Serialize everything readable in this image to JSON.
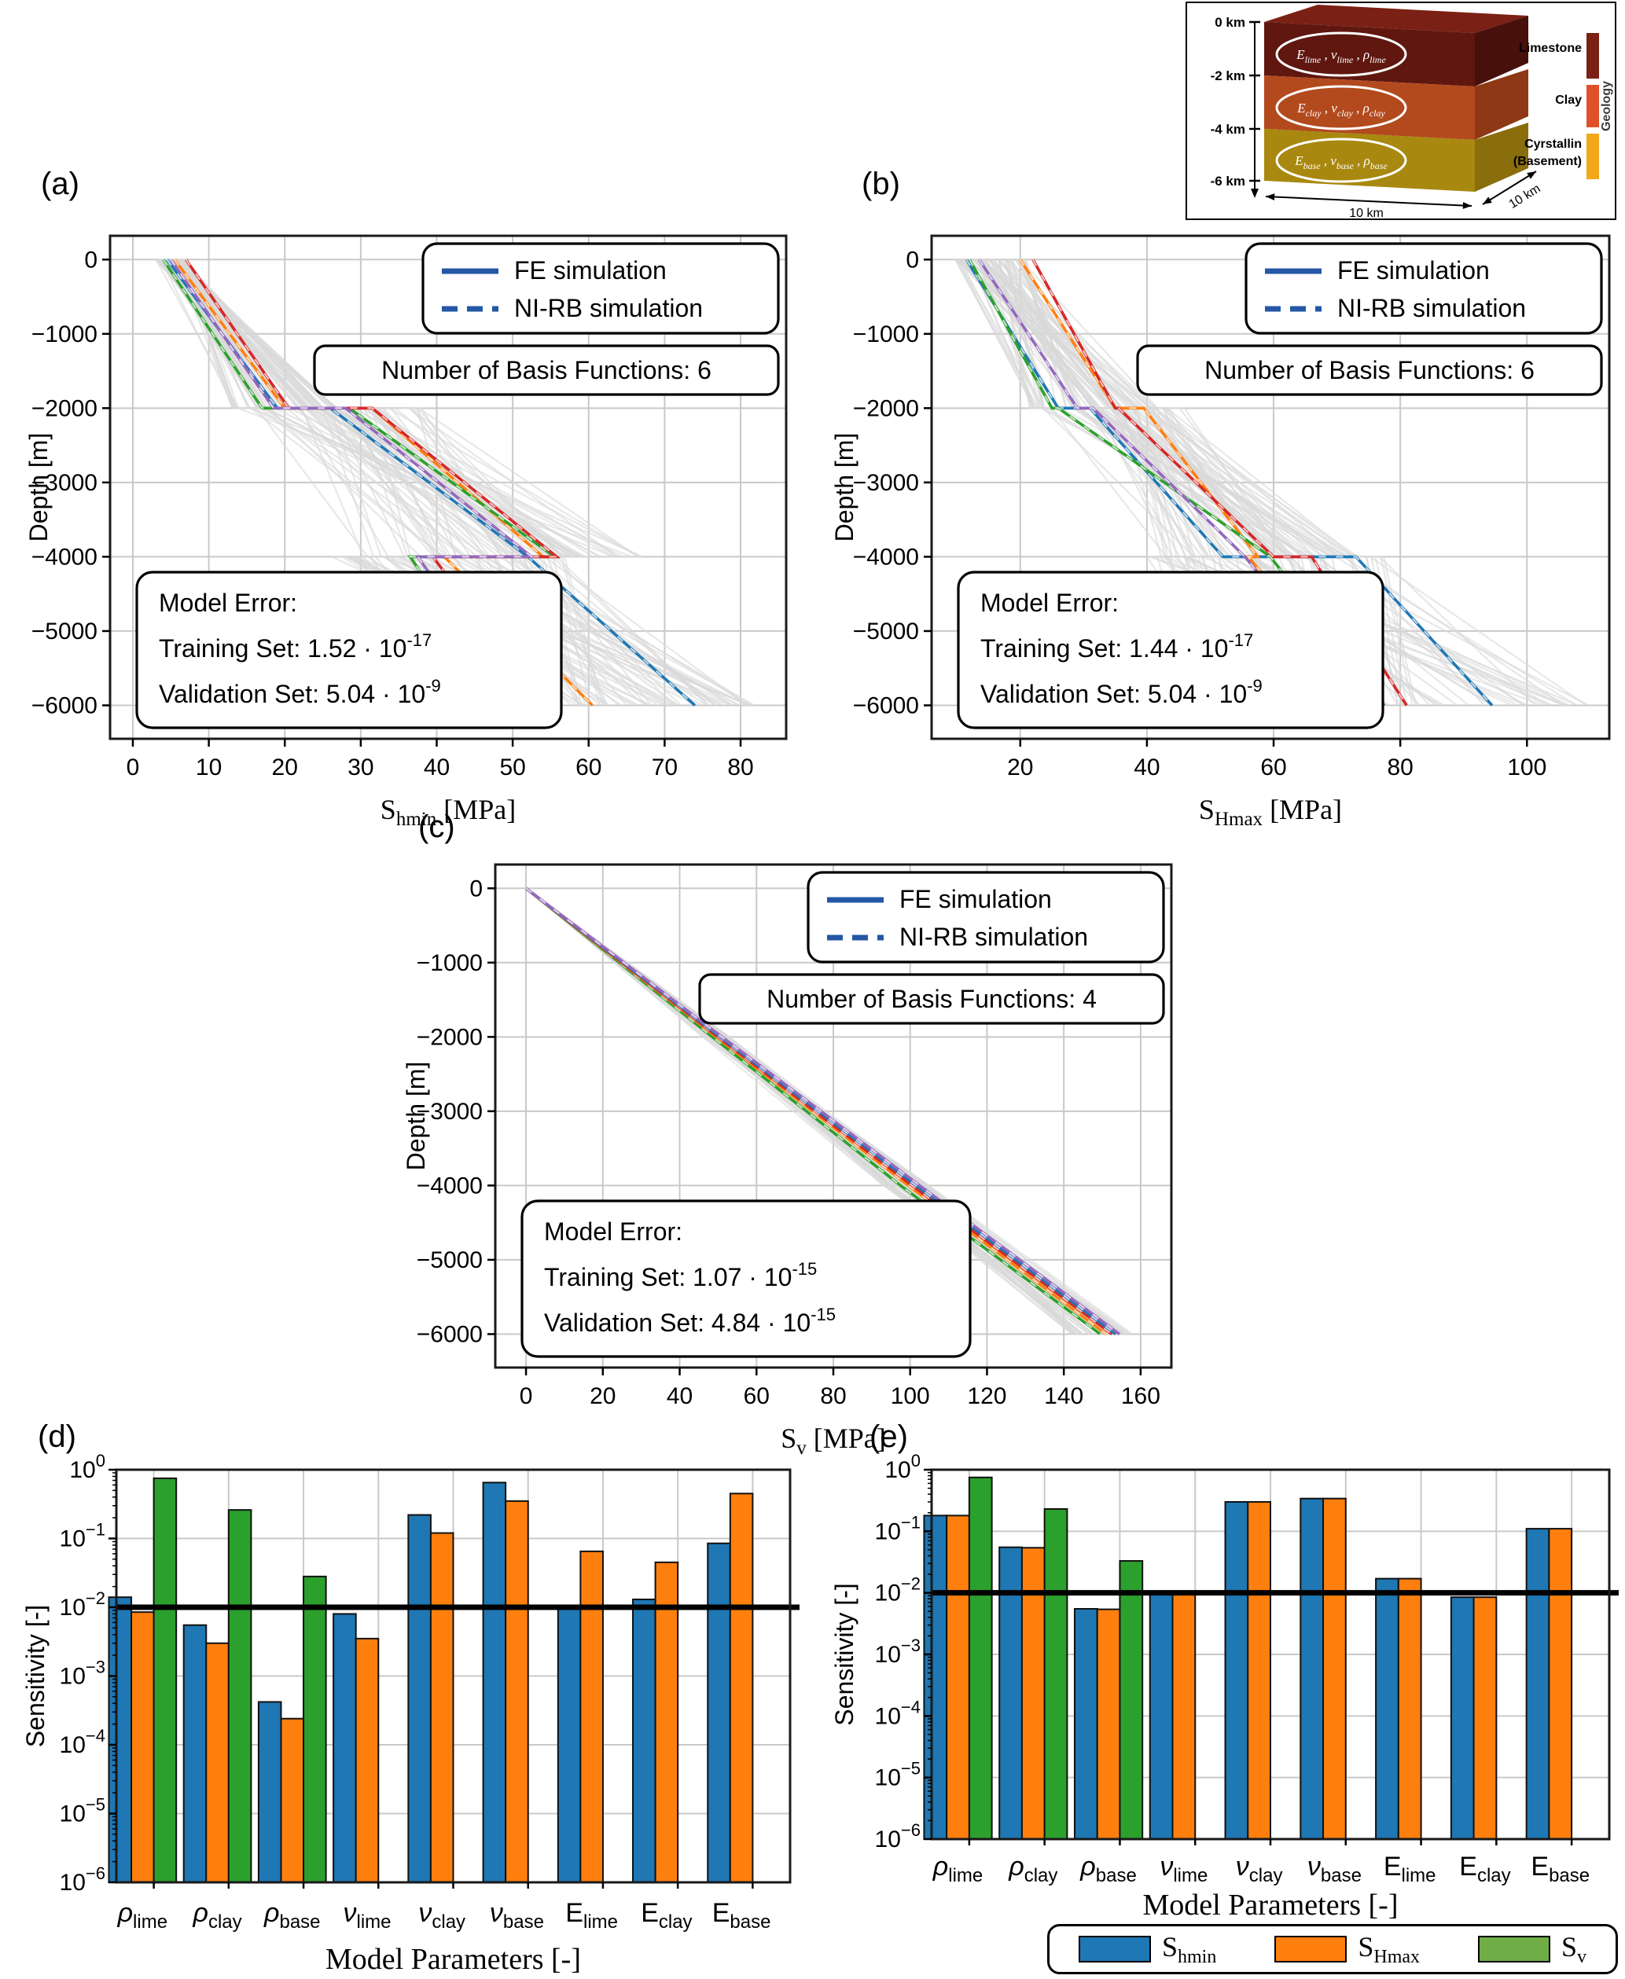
{
  "panel_labels": {
    "a": "(a)",
    "b": "(b)",
    "c": "(c)",
    "d": "(d)",
    "e": "(e)"
  },
  "inset": {
    "depth_ticks": [
      "0 km",
      "-2 km",
      "-4 km",
      "-6 km"
    ],
    "front_width_label": "10 km",
    "side_width_label": "10 km",
    "layers": [
      {
        "name": "Limestone",
        "front": "#5f1710",
        "top": "#7b2014",
        "side": "#47100a",
        "params": [
          {
            "base": "E",
            "sub": "lime"
          },
          {
            "base": "ν",
            "sub": "lime"
          },
          {
            "base": "ρ",
            "sub": "lime"
          }
        ]
      },
      {
        "name": "Clay",
        "front": "#b34a1e",
        "side": "#8f3815",
        "params": [
          {
            "base": "E",
            "sub": "clay"
          },
          {
            "base": "ν",
            "sub": "clay"
          },
          {
            "base": "ρ",
            "sub": "clay"
          }
        ]
      },
      {
        "name": "Cyrstallin (Basement)",
        "front": "#a8880f",
        "side": "#8a6e0c",
        "params": [
          {
            "base": "E",
            "sub": "base"
          },
          {
            "base": "ν",
            "sub": "base"
          },
          {
            "base": "ρ",
            "sub": "base"
          }
        ]
      }
    ],
    "legend": {
      "title": "Geology",
      "items": [
        {
          "label": "Limestone",
          "label2": "",
          "color": "#7b2014"
        },
        {
          "label": "Clay",
          "label2": "",
          "color": "#e0512a"
        },
        {
          "label": "Cyrstallin",
          "label2": "(Basement)",
          "color": "#f3a71b"
        }
      ]
    }
  },
  "legend_footer": {
    "items": [
      {
        "base": "S",
        "sub": "hmin",
        "color": "#1f77b4"
      },
      {
        "base": "S",
        "sub": "Hmax",
        "color": "#ff7f0e"
      },
      {
        "base": "S",
        "sub": "v",
        "color": "#70ad47"
      }
    ]
  },
  "chart_data": [
    {
      "id": "a",
      "type": "line",
      "panel_label": "(a)",
      "xlabel": {
        "base": "S",
        "sub": "hmin",
        "unit": " [MPa]"
      },
      "ylabel": "Depth [m]",
      "xlim": [
        -3,
        86
      ],
      "xticks": [
        0,
        10,
        20,
        30,
        40,
        50,
        60,
        70,
        80
      ],
      "ylim": [
        -6450,
        320
      ],
      "yticks": [
        0,
        -1000,
        -2000,
        -3000,
        -4000,
        -5000,
        -6000
      ],
      "grid": true,
      "legend": {
        "fe": "FE simulation",
        "nirb": "NI-RB simulation",
        "line_color": "#2457a5",
        "position": "top-right"
      },
      "basis_label": "Number of Basis Functions: 6",
      "model_error": {
        "title": "Model Error:",
        "rows": [
          {
            "label": "Training Set:",
            "mantissa": "1.52",
            "exponent": "-17"
          },
          {
            "label": "Validation Set:",
            "mantissa": "5.04",
            "exponent": "-9"
          }
        ]
      },
      "depth_nodes": [
        0,
        -2000,
        -2000,
        -4000,
        -4000,
        -6000
      ],
      "series": [
        {
          "name": "sample-blue",
          "color": "#1f77b4",
          "x": [
            4.5,
            19,
            26,
            52,
            52,
            74
          ]
        },
        {
          "name": "sample-orange",
          "color": "#ff7f0e",
          "x": [
            5.5,
            20,
            31.5,
            54,
            41,
            60.5
          ]
        },
        {
          "name": "sample-green",
          "color": "#2ca02c",
          "x": [
            4.0,
            17,
            28.5,
            55.5,
            36.5,
            50
          ]
        },
        {
          "name": "sample-red",
          "color": "#d62728",
          "x": [
            7.0,
            20.5,
            31.5,
            55.8,
            39.5,
            54
          ]
        },
        {
          "name": "sample-purple",
          "color": "#9467bd",
          "x": [
            5.0,
            18.5,
            28,
            52.5,
            37.5,
            51.5
          ]
        }
      ],
      "ensemble": {
        "count": 85,
        "seed": 7,
        "ranges": [
          [
            3,
            7
          ],
          [
            13,
            27
          ],
          [
            13,
            38
          ],
          [
            30,
            68
          ],
          [
            26,
            57
          ],
          [
            44,
            82
          ]
        ]
      }
    },
    {
      "id": "b",
      "type": "line",
      "panel_label": "(b)",
      "xlabel": {
        "base": "S",
        "sub": "Hmax",
        "unit": " [MPa]"
      },
      "ylabel": "Depth [m]",
      "xlim": [
        6,
        113
      ],
      "xticks": [
        20,
        40,
        60,
        80,
        100
      ],
      "ylim": [
        -6450,
        320
      ],
      "yticks": [
        0,
        -1000,
        -2000,
        -3000,
        -4000,
        -5000,
        -6000
      ],
      "grid": true,
      "legend": {
        "fe": "FE simulation",
        "nirb": "NI-RB simulation",
        "line_color": "#2457a5",
        "position": "top-right"
      },
      "basis_label": "Number of Basis Functions: 6",
      "model_error": {
        "title": "Model Error:",
        "rows": [
          {
            "label": "Training Set:",
            "mantissa": "1.44",
            "exponent": "-17"
          },
          {
            "label": "Validation Set:",
            "mantissa": "5.04",
            "exponent": "-9"
          }
        ]
      },
      "depth_nodes": [
        0,
        -2000,
        -2000,
        -4000,
        -4000,
        -6000
      ],
      "series": [
        {
          "name": "sample-blue",
          "color": "#1f77b4",
          "x": [
            11.5,
            26,
            31,
            52,
            73,
            94.5
          ]
        },
        {
          "name": "sample-orange",
          "color": "#ff7f0e",
          "x": [
            20,
            35,
            39.5,
            57.5,
            56,
            75.5
          ]
        },
        {
          "name": "sample-green",
          "color": "#2ca02c",
          "x": [
            12,
            25,
            26,
            59.5,
            59.5,
            77.5
          ]
        },
        {
          "name": "sample-red",
          "color": "#d62728",
          "x": [
            22,
            35,
            35.5,
            60,
            66,
            81
          ]
        },
        {
          "name": "sample-purple",
          "color": "#9467bd",
          "x": [
            13.5,
            29,
            31.5,
            55.5,
            55.5,
            74
          ]
        }
      ],
      "ensemble": {
        "count": 85,
        "seed": 11,
        "ranges": [
          [
            9,
            21
          ],
          [
            21,
            42
          ],
          [
            21,
            46
          ],
          [
            42,
            74
          ],
          [
            40,
            78
          ],
          [
            46,
            110
          ]
        ]
      }
    },
    {
      "id": "c",
      "type": "line",
      "panel_label": "(c)",
      "xlabel": {
        "base": "S",
        "sub": "v",
        "unit": " [MPa]"
      },
      "ylabel": "Depth [m]",
      "xlim": [
        -8,
        168
      ],
      "xticks": [
        0,
        20,
        40,
        60,
        80,
        100,
        120,
        140,
        160
      ],
      "ylim": [
        -6450,
        320
      ],
      "yticks": [
        0,
        -1000,
        -2000,
        -3000,
        -4000,
        -5000,
        -6000
      ],
      "grid": true,
      "legend": {
        "fe": "FE simulation",
        "nirb": "NI-RB simulation",
        "line_color": "#2457a5",
        "position": "top-right"
      },
      "basis_label": "Number of Basis Functions: 4",
      "model_error": {
        "title": "Model Error:",
        "rows": [
          {
            "label": "Training Set:",
            "mantissa": "1.07",
            "exponent": "-15"
          },
          {
            "label": "Validation Set:",
            "mantissa": "4.84",
            "exponent": "-15"
          }
        ]
      },
      "depth_nodes": [
        0,
        -2000,
        -4000,
        -6000
      ],
      "series": [
        {
          "name": "sample-green",
          "color": "#2ca02c",
          "x": [
            0,
            48.5,
            97.5,
            149.5
          ]
        },
        {
          "name": "sample-orange",
          "color": "#ff7f0e",
          "x": [
            0,
            49.5,
            99.5,
            151
          ]
        },
        {
          "name": "sample-red",
          "color": "#d62728",
          "x": [
            0,
            50,
            100.5,
            152.5
          ]
        },
        {
          "name": "sample-blue",
          "color": "#1f77b4",
          "x": [
            0,
            50.5,
            101.5,
            153.5
          ]
        },
        {
          "name": "sample-purple",
          "color": "#9467bd",
          "x": [
            0,
            51,
            102.5,
            154.5
          ]
        }
      ],
      "ensemble": {
        "count": 55,
        "seed": 3,
        "ranges": [
          [
            0,
            0
          ],
          [
            46,
            53
          ],
          [
            93,
            105
          ],
          [
            142,
            158
          ]
        ]
      }
    },
    {
      "id": "d",
      "type": "bar",
      "panel_label": "(d)",
      "ylabel": "Sensitivity [-]",
      "xlabel": "Model Parameters [-]",
      "ylim_exponents": [
        0,
        -6
      ],
      "ytick_exponents": [
        0,
        -1,
        -2,
        -3,
        -4,
        -5,
        -6
      ],
      "threshold": 0.01,
      "categories": [
        {
          "base": "ρ",
          "sub": "lime"
        },
        {
          "base": "ρ",
          "sub": "clay"
        },
        {
          "base": "ρ",
          "sub": "base"
        },
        {
          "base": "ν",
          "sub": "lime"
        },
        {
          "base": "ν",
          "sub": "clay"
        },
        {
          "base": "ν",
          "sub": "base"
        },
        {
          "base": "E",
          "sub": "lime"
        },
        {
          "base": "E",
          "sub": "clay"
        },
        {
          "base": "E",
          "sub": "base"
        }
      ],
      "series": [
        {
          "name": "S_hmin",
          "color": "#1f77b4",
          "values": [
            0.014,
            0.0055,
            0.00042,
            0.008,
            0.22,
            0.65,
            0.01,
            0.013,
            0.085
          ]
        },
        {
          "name": "S_Hmax",
          "color": "#ff7f0e",
          "values": [
            0.0085,
            0.003,
            0.00024,
            0.0035,
            0.12,
            0.35,
            0.065,
            0.045,
            0.45
          ]
        },
        {
          "name": "S_v",
          "color": "#2ca02c",
          "values": [
            0.75,
            0.26,
            0.028,
            null,
            null,
            null,
            null,
            null,
            null
          ]
        }
      ]
    },
    {
      "id": "e",
      "type": "bar",
      "panel_label": "(e)",
      "ylabel": "Sensitivity [-]",
      "xlabel": "Model Parameters [-]",
      "ylim_exponents": [
        0,
        -6
      ],
      "ytick_exponents": [
        0,
        -1,
        -2,
        -3,
        -4,
        -5,
        -6
      ],
      "threshold": 0.01,
      "categories": [
        {
          "base": "ρ",
          "sub": "lime"
        },
        {
          "base": "ρ",
          "sub": "clay"
        },
        {
          "base": "ρ",
          "sub": "base"
        },
        {
          "base": "ν",
          "sub": "lime"
        },
        {
          "base": "ν",
          "sub": "clay"
        },
        {
          "base": "ν",
          "sub": "base"
        },
        {
          "base": "E",
          "sub": "lime"
        },
        {
          "base": "E",
          "sub": "clay"
        },
        {
          "base": "E",
          "sub": "base"
        }
      ],
      "series": [
        {
          "name": "S_hmin",
          "color": "#1f77b4",
          "values": [
            0.18,
            0.055,
            0.0055,
            0.0105,
            0.3,
            0.34,
            0.017,
            0.0085,
            0.11
          ]
        },
        {
          "name": "S_Hmax",
          "color": "#ff7f0e",
          "values": [
            0.18,
            0.054,
            0.0054,
            0.0105,
            0.3,
            0.34,
            0.017,
            0.0085,
            0.11
          ]
        },
        {
          "name": "S_v",
          "color": "#2ca02c",
          "values": [
            0.75,
            0.23,
            0.033,
            null,
            null,
            null,
            null,
            null,
            null
          ]
        }
      ]
    }
  ]
}
